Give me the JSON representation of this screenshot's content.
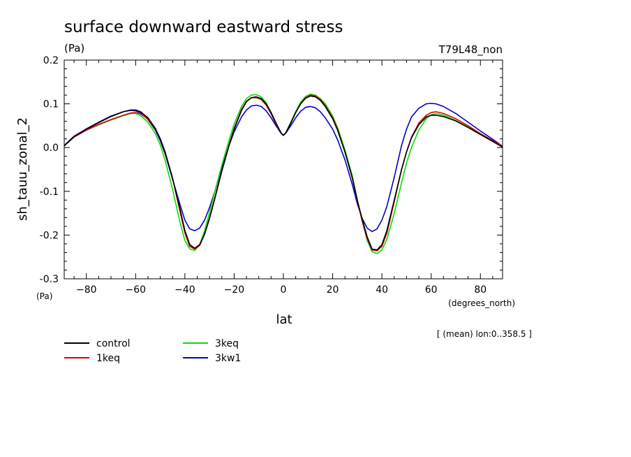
{
  "chart_data": {
    "type": "line",
    "title": "surface downward eastward stress",
    "title_unit": "(Pa)",
    "run_label": "T79L48_non",
    "xlabel": "lat",
    "xunit": "(degrees_north)",
    "ylabel": "sh_tauu_zonal_2",
    "yunit": "(Pa)",
    "note": "[ (mean) lon:0..358.5 ]",
    "xlim": [
      -89,
      89
    ],
    "ylim": [
      -0.3,
      0.2
    ],
    "x_ticks": [
      -80,
      -60,
      -40,
      -20,
      0,
      20,
      40,
      60,
      80
    ],
    "y_ticks": [
      -0.3,
      -0.2,
      -0.1,
      0.0,
      0.1,
      0.2
    ],
    "y_tick_labels": [
      "-0.3",
      "-0.2",
      "-0.1",
      "0.0",
      "0.1",
      "0.2"
    ],
    "grid": false,
    "legend_position": "bottom-left",
    "x": [
      -89,
      -85,
      -80,
      -75,
      -70,
      -65,
      -62,
      -60,
      -58,
      -55,
      -52,
      -50,
      -48,
      -45,
      -42,
      -40,
      -38,
      -36,
      -34,
      -32,
      -30,
      -28,
      -25,
      -22,
      -20,
      -17,
      -15,
      -13,
      -11,
      -9,
      -7,
      -5,
      -3,
      -1,
      0,
      1,
      3,
      5,
      7,
      9,
      11,
      13,
      15,
      17,
      20,
      22,
      25,
      28,
      30,
      32,
      34,
      36,
      38,
      40,
      42,
      45,
      48,
      50,
      52,
      55,
      58,
      60,
      62,
      65,
      70,
      75,
      80,
      85,
      89
    ],
    "series": [
      {
        "name": "control",
        "color": "#000000",
        "values": [
          0.004,
          0.025,
          0.042,
          0.057,
          0.071,
          0.082,
          0.086,
          0.086,
          0.082,
          0.068,
          0.044,
          0.02,
          -0.012,
          -0.07,
          -0.14,
          -0.19,
          -0.222,
          -0.23,
          -0.222,
          -0.198,
          -0.162,
          -0.12,
          -0.054,
          0.006,
          0.042,
          0.085,
          0.105,
          0.114,
          0.116,
          0.112,
          0.1,
          0.08,
          0.056,
          0.034,
          0.028,
          0.034,
          0.056,
          0.08,
          0.1,
          0.113,
          0.118,
          0.116,
          0.108,
          0.094,
          0.066,
          0.04,
          -0.01,
          -0.07,
          -0.12,
          -0.164,
          -0.204,
          -0.232,
          -0.234,
          -0.222,
          -0.19,
          -0.12,
          -0.05,
          -0.01,
          0.022,
          0.052,
          0.07,
          0.074,
          0.074,
          0.071,
          0.061,
          0.046,
          0.03,
          0.014,
          0.001
        ]
      },
      {
        "name": "1keq",
        "color": "#e00000",
        "values": [
          0.004,
          0.024,
          0.04,
          0.053,
          0.064,
          0.074,
          0.079,
          0.08,
          0.077,
          0.065,
          0.043,
          0.02,
          -0.01,
          -0.07,
          -0.145,
          -0.195,
          -0.226,
          -0.232,
          -0.224,
          -0.198,
          -0.16,
          -0.118,
          -0.052,
          0.008,
          0.044,
          0.087,
          0.106,
          0.114,
          0.114,
          0.11,
          0.097,
          0.077,
          0.054,
          0.034,
          0.028,
          0.034,
          0.056,
          0.08,
          0.1,
          0.114,
          0.12,
          0.118,
          0.11,
          0.096,
          0.068,
          0.042,
          -0.01,
          -0.07,
          -0.122,
          -0.168,
          -0.208,
          -0.234,
          -0.236,
          -0.226,
          -0.196,
          -0.124,
          -0.05,
          -0.01,
          0.024,
          0.056,
          0.074,
          0.08,
          0.082,
          0.078,
          0.066,
          0.05,
          0.032,
          0.016,
          0.003
        ]
      },
      {
        "name": "3keq",
        "color": "#00e000",
        "values": [
          0.004,
          0.024,
          0.04,
          0.052,
          0.063,
          0.073,
          0.078,
          0.078,
          0.073,
          0.058,
          0.032,
          0.006,
          -0.03,
          -0.095,
          -0.17,
          -0.212,
          -0.232,
          -0.235,
          -0.222,
          -0.19,
          -0.148,
          -0.104,
          -0.04,
          0.018,
          0.054,
          0.094,
          0.112,
          0.12,
          0.121,
          0.116,
          0.102,
          0.08,
          0.056,
          0.034,
          0.028,
          0.034,
          0.058,
          0.082,
          0.104,
          0.117,
          0.122,
          0.12,
          0.112,
          0.1,
          0.072,
          0.046,
          -0.005,
          -0.065,
          -0.118,
          -0.168,
          -0.212,
          -0.238,
          -0.242,
          -0.234,
          -0.21,
          -0.15,
          -0.08,
          -0.035,
          0.0,
          0.04,
          0.066,
          0.075,
          0.078,
          0.074,
          0.062,
          0.047,
          0.031,
          0.015,
          0.002
        ]
      },
      {
        "name": "3kw1",
        "color": "#0000d0",
        "values": [
          0.005,
          0.026,
          0.043,
          0.058,
          0.072,
          0.082,
          0.085,
          0.084,
          0.079,
          0.064,
          0.04,
          0.016,
          -0.015,
          -0.072,
          -0.13,
          -0.166,
          -0.186,
          -0.19,
          -0.184,
          -0.166,
          -0.137,
          -0.103,
          -0.046,
          0.006,
          0.036,
          0.07,
          0.086,
          0.095,
          0.097,
          0.094,
          0.084,
          0.068,
          0.05,
          0.033,
          0.028,
          0.033,
          0.05,
          0.068,
          0.083,
          0.092,
          0.094,
          0.091,
          0.082,
          0.068,
          0.042,
          0.018,
          -0.028,
          -0.085,
          -0.128,
          -0.162,
          -0.184,
          -0.192,
          -0.186,
          -0.166,
          -0.135,
          -0.068,
          0.005,
          0.042,
          0.07,
          0.09,
          0.1,
          0.101,
          0.1,
          0.094,
          0.078,
          0.058,
          0.038,
          0.019,
          0.003
        ]
      }
    ]
  }
}
